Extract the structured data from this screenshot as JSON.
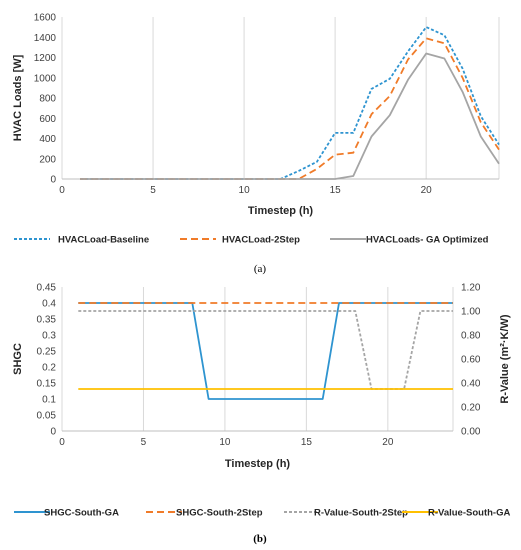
{
  "chart_data": [
    {
      "type": "line",
      "caption": "(a)",
      "xlabel": "Timestep (h)",
      "ylabel": "HVAC Loads [W]",
      "xlim": [
        0,
        24
      ],
      "ylim": [
        0,
        1600
      ],
      "xticks": [
        "0",
        "5",
        "10",
        "15",
        "20"
      ],
      "yticks": [
        "0",
        "200",
        "400",
        "600",
        "800",
        "1000",
        "1200",
        "1400",
        "1600"
      ],
      "grid": "vertical",
      "legend_position": "bottom",
      "x": [
        1,
        2,
        3,
        4,
        5,
        6,
        7,
        8,
        9,
        10,
        11,
        12,
        13,
        14,
        15,
        16,
        17,
        18,
        19,
        20,
        21,
        22,
        23,
        24
      ],
      "series": [
        {
          "name": "HVACLoad-Baseline",
          "color": "#2E94D0",
          "dash": "dotted",
          "values": [
            0,
            0,
            0,
            0,
            0,
            0,
            0,
            0,
            0,
            0,
            0,
            0,
            80,
            170,
            455,
            455,
            890,
            990,
            1260,
            1500,
            1420,
            1090,
            620,
            340
          ]
        },
        {
          "name": "HVACLoad-2Step",
          "color": "#F07B29",
          "dash": "dashed",
          "values": [
            0,
            0,
            0,
            0,
            0,
            0,
            0,
            0,
            0,
            0,
            0,
            0,
            0,
            100,
            240,
            260,
            640,
            820,
            1180,
            1390,
            1340,
            1000,
            560,
            290
          ]
        },
        {
          "name": "HVACLoads- GA Optimized",
          "color": "#A5A5A5",
          "dash": "solid",
          "values": [
            0,
            0,
            0,
            0,
            0,
            0,
            0,
            0,
            0,
            0,
            0,
            0,
            0,
            0,
            0,
            30,
            420,
            630,
            980,
            1240,
            1190,
            860,
            420,
            150
          ]
        }
      ]
    },
    {
      "type": "line",
      "caption": "(b)",
      "xlabel": "Timestep (h)",
      "ylabel": "SHGC",
      "y2label": "R-Value (m²·K/W)",
      "xlim": [
        0,
        24
      ],
      "ylim": [
        0,
        0.45
      ],
      "y2lim": [
        0,
        1.2
      ],
      "xticks": [
        "0",
        "5",
        "10",
        "15",
        "20"
      ],
      "yticks": [
        "0",
        "0.05",
        "0.1",
        "0.15",
        "0.2",
        "0.25",
        "0.3",
        "0.35",
        "0.4",
        "0.45"
      ],
      "y2ticks": [
        "0.00",
        "0.20",
        "0.40",
        "0.60",
        "0.80",
        "1.00",
        "1.20"
      ],
      "grid": "vertical",
      "legend_position": "bottom",
      "x": [
        1,
        2,
        3,
        4,
        5,
        6,
        7,
        8,
        9,
        10,
        11,
        12,
        13,
        14,
        15,
        16,
        17,
        18,
        19,
        20,
        21,
        22,
        23,
        24
      ],
      "series": [
        {
          "name": "SHGC-South-GA",
          "color": "#2E94D0",
          "dash": "solid",
          "axis": "left",
          "values": [
            0.4,
            0.4,
            0.4,
            0.4,
            0.4,
            0.4,
            0.4,
            0.4,
            0.1,
            0.1,
            0.1,
            0.1,
            0.1,
            0.1,
            0.1,
            0.1,
            0.4,
            0.4,
            0.4,
            0.4,
            0.4,
            0.4,
            0.4,
            0.4
          ]
        },
        {
          "name": "SHGC-South-2Step",
          "color": "#F07B29",
          "dash": "dashed",
          "axis": "left",
          "values": [
            0.4,
            0.4,
            0.4,
            0.4,
            0.4,
            0.4,
            0.4,
            0.4,
            0.4,
            0.4,
            0.4,
            0.4,
            0.4,
            0.4,
            0.4,
            0.4,
            0.4,
            0.4,
            0.4,
            0.4,
            0.4,
            0.4,
            0.4,
            0.4
          ]
        },
        {
          "name": "R-Value-South-2Step",
          "color": "#A5A5A5",
          "dash": "dotted",
          "axis": "right",
          "values": [
            1.0,
            1.0,
            1.0,
            1.0,
            1.0,
            1.0,
            1.0,
            1.0,
            1.0,
            1.0,
            1.0,
            1.0,
            1.0,
            1.0,
            1.0,
            1.0,
            1.0,
            1.0,
            0.35,
            0.35,
            0.35,
            1.0,
            1.0,
            1.0
          ]
        },
        {
          "name": "R-Value-South-GA",
          "color": "#FFC000",
          "dash": "solid",
          "axis": "right",
          "values": [
            0.35,
            0.35,
            0.35,
            0.35,
            0.35,
            0.35,
            0.35,
            0.35,
            0.35,
            0.35,
            0.35,
            0.35,
            0.35,
            0.35,
            0.35,
            0.35,
            0.35,
            0.35,
            0.35,
            0.35,
            0.35,
            0.35,
            0.35,
            0.35
          ]
        }
      ]
    }
  ]
}
